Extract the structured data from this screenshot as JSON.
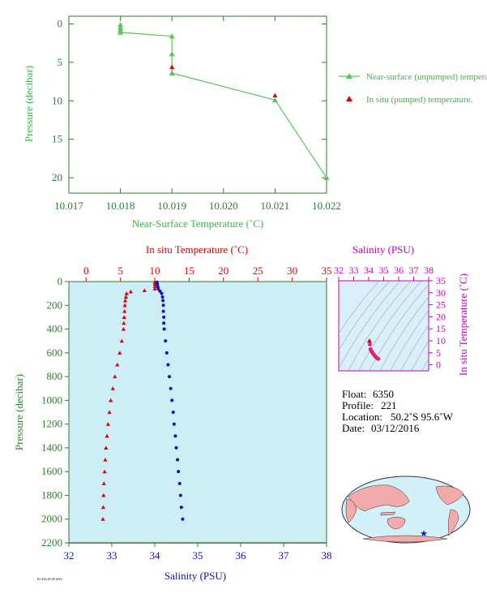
{
  "colors": {
    "green_series": "#5cc45c",
    "green_text": "#2e7d32",
    "axis_label_green": "#3cb44b",
    "red": "#e00000",
    "blue": "#1010c0",
    "magenta": "#c800c8",
    "plot_bg": "#cdeef7",
    "land": "#f2aaaa",
    "ocean": "#d4f0f8"
  },
  "chart_data": [
    {
      "type": "line",
      "xlabel": "Near-Surface Temperature (˚C)",
      "ylabel": "Pressure (decibar)",
      "xlim": [
        10.017,
        10.022
      ],
      "ylim": [
        22,
        -1
      ],
      "xticks": [
        "10.017",
        "10.018",
        "10.019",
        "10.020",
        "10.021",
        "10.022"
      ],
      "yticks": [
        "0",
        "5",
        "10",
        "15",
        "20"
      ],
      "legend_position": "right",
      "series": [
        {
          "name": "Near-surface (unpumped) temperature.",
          "marker": "triangle",
          "x": [
            10.018,
            10.018,
            10.018,
            10.018,
            10.019,
            10.019,
            10.019,
            10.021,
            10.022
          ],
          "y": [
            0.1,
            0.5,
            0.8,
            1.1,
            1.6,
            3.9,
            6.4,
            9.9,
            20.0
          ]
        },
        {
          "name": "In situ (pumped) temperature.",
          "marker": "triangle",
          "x": [
            10.019,
            10.021
          ],
          "y": [
            5.6,
            9.3
          ]
        }
      ]
    },
    {
      "type": "line",
      "title_top": "In situ Temperature (˚C)",
      "xlabel": "Salinity (PSU)",
      "ylabel": "Pressure (decibar)",
      "temp_lim": [
        -2.5,
        35
      ],
      "temp_ticks": [
        "0",
        "5",
        "10",
        "15",
        "20",
        "25",
        "30",
        "35"
      ],
      "sal_lim": [
        32,
        38
      ],
      "sal_ticks": [
        "32",
        "33",
        "34",
        "35",
        "36",
        "37",
        "38"
      ],
      "pres_lim": [
        0,
        2200
      ],
      "pres_ticks": [
        "0",
        "200",
        "400",
        "600",
        "800",
        "1000",
        "1200",
        "1400",
        "1600",
        "1800",
        "2000",
        "2200"
      ],
      "temperature_profile": {
        "p": [
          5,
          20,
          40,
          60,
          75,
          85,
          100,
          130,
          160,
          200,
          250,
          300,
          350,
          400,
          500,
          600,
          700,
          800,
          900,
          1000,
          1100,
          1200,
          1300,
          1400,
          1500,
          1600,
          1700,
          1800,
          1900,
          2000
        ],
        "t": [
          10.02,
          10.02,
          10.02,
          10.01,
          8.5,
          6.5,
          5.9,
          5.8,
          5.7,
          5.65,
          5.6,
          5.55,
          5.5,
          5.45,
          5.2,
          4.9,
          4.55,
          4.2,
          3.9,
          3.6,
          3.4,
          3.2,
          3.05,
          2.9,
          2.8,
          2.7,
          2.6,
          2.55,
          2.5,
          2.45
        ]
      },
      "salinity_profile": {
        "p": [
          5,
          20,
          40,
          60,
          80,
          100,
          130,
          160,
          200,
          250,
          300,
          350,
          400,
          500,
          600,
          700,
          800,
          900,
          1000,
          1100,
          1200,
          1300,
          1400,
          1500,
          1600,
          1700,
          1800,
          1900,
          2000
        ],
        "s": [
          34.05,
          34.06,
          34.07,
          34.08,
          34.12,
          34.16,
          34.18,
          34.19,
          34.2,
          34.2,
          34.21,
          34.21,
          34.22,
          34.25,
          34.28,
          34.31,
          34.34,
          34.37,
          34.4,
          34.43,
          34.45,
          34.48,
          34.5,
          34.53,
          34.55,
          34.58,
          34.6,
          34.62,
          34.65
        ]
      }
    },
    {
      "type": "scatter",
      "title_top": "Salinity (PSU)",
      "ylabel": "In situ Temperature (˚C)",
      "xlim": [
        32,
        38
      ],
      "ylim": [
        -2.5,
        35
      ],
      "xticks": [
        "32",
        "33",
        "34",
        "35",
        "36",
        "37",
        "38"
      ],
      "yticks": [
        "0",
        "5",
        "10",
        "15",
        "20",
        "25",
        "30",
        "35"
      ],
      "points_s": [
        34.05,
        34.08,
        34.12,
        34.16,
        34.2,
        34.22,
        34.25,
        34.3,
        34.35,
        34.4,
        34.45,
        34.5,
        34.55,
        34.6,
        34.65
      ],
      "points_t": [
        10.0,
        8.5,
        6.5,
        5.8,
        5.6,
        5.4,
        5.1,
        4.6,
        4.2,
        3.8,
        3.4,
        3.1,
        2.8,
        2.6,
        2.45
      ]
    }
  ],
  "info": {
    "float_label": "Float:",
    "float_value": "6350",
    "profile_label": "Profile:",
    "profile_value": "221",
    "location_label": "Location:",
    "location_value": "50.2˚S  95.6˚W",
    "date_label": "Date:",
    "date_value": "03/12/2016"
  },
  "footer_code": "Fri Feb 26 09 2016"
}
